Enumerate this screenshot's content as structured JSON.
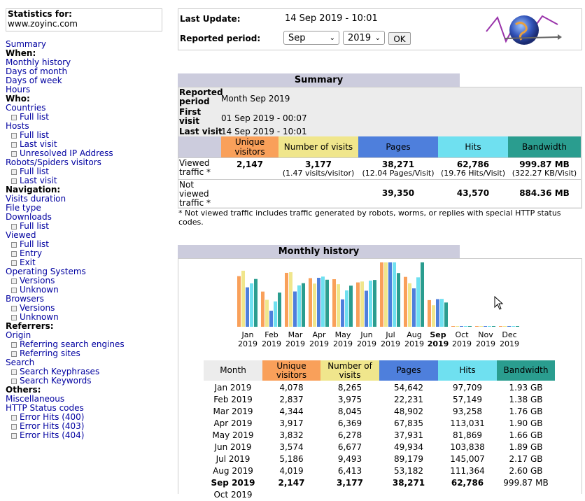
{
  "header": {
    "stats_for_label": "Statistics for:",
    "site": "www.zoyinc.com"
  },
  "menu": [
    {
      "t": "Summary",
      "k": "link"
    },
    {
      "t": "When:",
      "k": "head"
    },
    {
      "t": "Monthly history",
      "k": "link"
    },
    {
      "t": "Days of month",
      "k": "link"
    },
    {
      "t": "Days of week",
      "k": "link"
    },
    {
      "t": "Hours",
      "k": "link"
    },
    {
      "t": "Who:",
      "k": "head"
    },
    {
      "t": "Countries",
      "k": "link"
    },
    {
      "t": "Full list",
      "k": "sub"
    },
    {
      "t": "Hosts",
      "k": "link"
    },
    {
      "t": "Full list",
      "k": "sub"
    },
    {
      "t": "Last visit",
      "k": "sub"
    },
    {
      "t": "Unresolved IP Address",
      "k": "sub"
    },
    {
      "t": "Robots/Spiders visitors",
      "k": "link"
    },
    {
      "t": "Full list",
      "k": "sub"
    },
    {
      "t": "Last visit",
      "k": "sub"
    },
    {
      "t": "Navigation:",
      "k": "head"
    },
    {
      "t": "Visits duration",
      "k": "link"
    },
    {
      "t": "File type",
      "k": "link"
    },
    {
      "t": "Downloads",
      "k": "link"
    },
    {
      "t": "Full list",
      "k": "sub"
    },
    {
      "t": "Viewed",
      "k": "link"
    },
    {
      "t": "Full list",
      "k": "sub"
    },
    {
      "t": "Entry",
      "k": "sub"
    },
    {
      "t": "Exit",
      "k": "sub"
    },
    {
      "t": "Operating Systems",
      "k": "link"
    },
    {
      "t": "Versions",
      "k": "sub"
    },
    {
      "t": "Unknown",
      "k": "sub"
    },
    {
      "t": "Browsers",
      "k": "link"
    },
    {
      "t": "Versions",
      "k": "sub"
    },
    {
      "t": "Unknown",
      "k": "sub"
    },
    {
      "t": "Referrers:",
      "k": "head"
    },
    {
      "t": "Origin",
      "k": "link"
    },
    {
      "t": "Referring search engines",
      "k": "sub"
    },
    {
      "t": "Referring sites",
      "k": "sub"
    },
    {
      "t": "Search",
      "k": "link"
    },
    {
      "t": "Search Keyphrases",
      "k": "sub"
    },
    {
      "t": "Search Keywords",
      "k": "sub"
    },
    {
      "t": "Others:",
      "k": "head"
    },
    {
      "t": "Miscellaneous",
      "k": "link"
    },
    {
      "t": "HTTP Status codes",
      "k": "link"
    },
    {
      "t": "Error Hits (400)",
      "k": "sub"
    },
    {
      "t": "Error Hits (403)",
      "k": "sub"
    },
    {
      "t": "Error Hits (404)",
      "k": "sub"
    }
  ],
  "top": {
    "last_update_label": "Last Update:",
    "last_update_value": "14 Sep 2019 - 10:01",
    "period_label": "Reported period:",
    "month_select": "Sep",
    "year_select": "2019",
    "ok_label": "OK"
  },
  "summary": {
    "title": "Summary",
    "reported_period_label": "Reported period",
    "reported_period_value": "Month Sep 2019",
    "first_visit_label": "First visit",
    "first_visit_value": "01 Sep 2019 - 00:07",
    "last_visit_label": "Last visit",
    "last_visit_value": "14 Sep 2019 - 10:01",
    "headers": [
      "Unique visitors",
      "Number of visits",
      "Pages",
      "Hits",
      "Bandwidth"
    ],
    "viewed_label": "Viewed traffic *",
    "viewed": {
      "unique": "2,147",
      "visits": "3,177",
      "visits_sub": "(1.47 visits/visitor)",
      "pages": "38,271",
      "pages_sub": "(12.04 Pages/Visit)",
      "hits": "62,786",
      "hits_sub": "(19.76 Hits/Visit)",
      "bandwidth": "999.87 MB",
      "bandwidth_sub": "(322.27 KB/Visit)"
    },
    "not_viewed_label": "Not viewed traffic *",
    "not_viewed": {
      "pages": "39,350",
      "hits": "43,570",
      "bandwidth": "884.36 MB"
    },
    "note": "* Not viewed traffic includes traffic generated by robots, worms, or replies with special HTTP status codes."
  },
  "monthly": {
    "title": "Monthly history",
    "headers": [
      "Month",
      "Unique visitors",
      "Number of visits",
      "Pages",
      "Hits",
      "Bandwidth"
    ],
    "colors": {
      "unique": "#f9a05a",
      "visits": "#f0e68c",
      "pages": "#4e7fdc",
      "hits": "#6fe0f0",
      "bandwidth": "#2a9d8f"
    },
    "rows": [
      [
        "Jan 2019",
        "4,078",
        "8,265",
        "54,642",
        "97,709",
        "1.93 GB"
      ],
      [
        "Feb 2019",
        "2,837",
        "3,975",
        "22,231",
        "57,149",
        "1.38 GB"
      ],
      [
        "Mar 2019",
        "4,344",
        "8,045",
        "48,902",
        "93,258",
        "1.76 GB"
      ],
      [
        "Apr 2019",
        "3,917",
        "6,369",
        "67,835",
        "113,031",
        "1.90 GB"
      ],
      [
        "May 2019",
        "3,832",
        "6,278",
        "37,931",
        "81,869",
        "1.66 GB"
      ],
      [
        "Jun 2019",
        "3,574",
        "6,677",
        "49,934",
        "103,838",
        "1.89 GB"
      ],
      [
        "Jul 2019",
        "5,186",
        "9,493",
        "89,179",
        "145,007",
        "2.17 GB"
      ],
      [
        "Aug 2019",
        "4,019",
        "6,413",
        "53,182",
        "111,364",
        "2.60 GB"
      ],
      [
        "Sep 2019",
        "2,147",
        "3,177",
        "38,271",
        "62,786",
        "999.87 MB"
      ]
    ],
    "partial_row": "Oct 2019"
  },
  "chart_data": {
    "type": "bar",
    "categories": [
      "Jan 2019",
      "Feb 2019",
      "Mar 2019",
      "Apr 2019",
      "May 2019",
      "Jun 2019",
      "Jul 2019",
      "Aug 2019",
      "Sep 2019",
      "Oct 2019",
      "Nov 2019",
      "Dec 2019"
    ],
    "month_labels": [
      [
        "Jan",
        "2019"
      ],
      [
        "Feb",
        "2019"
      ],
      [
        "Mar",
        "2019"
      ],
      [
        "Apr",
        "2019"
      ],
      [
        "May",
        "2019"
      ],
      [
        "Jun",
        "2019"
      ],
      [
        "Jul",
        "2019"
      ],
      [
        "Aug",
        "2019"
      ],
      [
        "Sep",
        "2019"
      ],
      [
        "Oct",
        "2019"
      ],
      [
        "Nov",
        "2019"
      ],
      [
        "Dec",
        "2019"
      ]
    ],
    "series": [
      {
        "key": "unique",
        "values": [
          4078,
          2837,
          4344,
          3917,
          3832,
          3574,
          5186,
          4019,
          2147,
          0,
          0,
          0
        ]
      },
      {
        "key": "visits",
        "values": [
          8265,
          3975,
          8045,
          6369,
          6278,
          6677,
          9493,
          6413,
          3177,
          0,
          0,
          0
        ]
      },
      {
        "key": "pages",
        "values": [
          54642,
          22231,
          48902,
          67835,
          37931,
          49934,
          89179,
          53182,
          38271,
          0,
          0,
          0
        ]
      },
      {
        "key": "hits",
        "values": [
          97709,
          57149,
          93258,
          113031,
          81869,
          103838,
          145007,
          111364,
          62786,
          0,
          0,
          0
        ]
      },
      {
        "key": "bandwidth",
        "values": [
          1.93,
          1.38,
          1.76,
          1.9,
          1.66,
          1.89,
          2.17,
          2.6,
          0.98,
          0,
          0,
          0
        ]
      }
    ]
  }
}
